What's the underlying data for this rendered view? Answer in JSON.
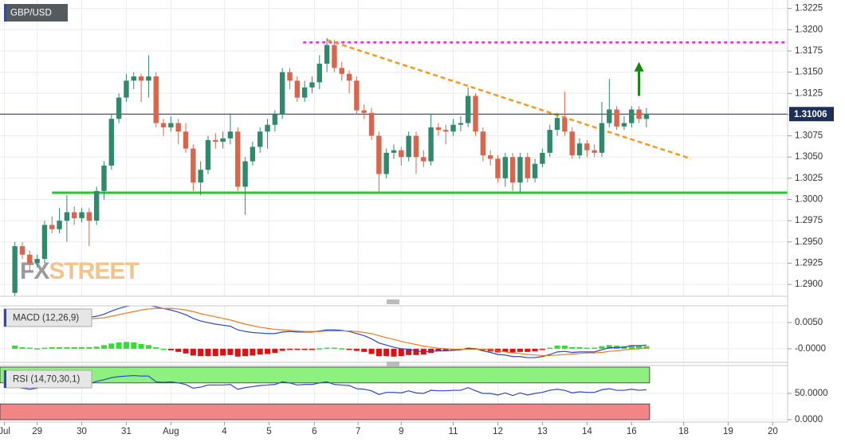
{
  "chart_data": [
    {
      "type": "candlestick",
      "title": "GBP/USD",
      "watermark": {
        "prefix": "FX",
        "suffix": "STREET"
      },
      "x": [
        0,
        1,
        2,
        3,
        4,
        5,
        6,
        7,
        8,
        9,
        10,
        11,
        12,
        13,
        14,
        15,
        16,
        17,
        18,
        19,
        20,
        21,
        22,
        23,
        24,
        25,
        26,
        27,
        28,
        29,
        30,
        31,
        32,
        33,
        34,
        35,
        36,
        37,
        38,
        39,
        40,
        41,
        42,
        43,
        44,
        45,
        46,
        47,
        48,
        49,
        50,
        51,
        52,
        53,
        54,
        55,
        56,
        57,
        58,
        59,
        60,
        61,
        62,
        63,
        64,
        65,
        66,
        67,
        68,
        69,
        70,
        71,
        72,
        73,
        74,
        75,
        76,
        77,
        78,
        79,
        80,
        81,
        82,
        83,
        84,
        85
      ],
      "open": [
        1.289,
        1.2945,
        1.2935,
        1.2925,
        1.293,
        1.297,
        1.2965,
        1.2975,
        1.2985,
        1.2978,
        1.2985,
        1.2975,
        1.301,
        1.304,
        1.3095,
        1.312,
        1.314,
        1.3145,
        1.314,
        1.3145,
        1.309,
        1.3085,
        1.309,
        1.308,
        1.306,
        1.302,
        1.3035,
        1.307,
        1.3068,
        1.3072,
        1.308,
        1.3015,
        1.3045,
        1.3062,
        1.308,
        1.3088,
        1.31,
        1.315,
        1.314,
        1.312,
        1.3132,
        1.3138,
        1.316,
        1.3182,
        1.3155,
        1.3148,
        1.314,
        1.3105,
        1.3102,
        1.3075,
        1.303,
        1.3055,
        1.3058,
        1.305,
        1.3075,
        1.305,
        1.3045,
        1.3085,
        1.3082,
        1.308,
        1.3088,
        1.309,
        1.3122,
        1.308,
        1.3052,
        1.3048,
        1.3025,
        1.305,
        1.302,
        1.305,
        1.3025,
        1.3042,
        1.3055,
        1.3082,
        1.3096,
        1.308,
        1.3052,
        1.3066,
        1.3058,
        1.3055,
        1.309,
        1.3106,
        1.3086,
        1.309,
        1.3106,
        1.3095
      ],
      "high": [
        1.295,
        1.295,
        1.294,
        1.2935,
        1.2975,
        1.298,
        1.299,
        1.3005,
        1.2992,
        1.299,
        1.299,
        1.3015,
        1.3045,
        1.31,
        1.3125,
        1.3148,
        1.315,
        1.3148,
        1.317,
        1.315,
        1.3095,
        1.3098,
        1.3095,
        1.309,
        1.3065,
        1.3045,
        1.3075,
        1.3078,
        1.308,
        1.31,
        1.3085,
        1.305,
        1.3068,
        1.3085,
        1.3095,
        1.3105,
        1.3155,
        1.3155,
        1.3145,
        1.314,
        1.3145,
        1.317,
        1.319,
        1.3188,
        1.3162,
        1.3152,
        1.3145,
        1.3112,
        1.3108,
        1.308,
        1.306,
        1.3065,
        1.3062,
        1.308,
        1.308,
        1.3058,
        1.31,
        1.309,
        1.3088,
        1.3095,
        1.3098,
        1.3132,
        1.3125,
        1.3085,
        1.3058,
        1.3052,
        1.3055,
        1.3055,
        1.3055,
        1.3055,
        1.3048,
        1.306,
        1.3088,
        1.3102,
        1.3127,
        1.3085,
        1.3072,
        1.307,
        1.3065,
        1.3115,
        1.3142,
        1.311,
        1.3098,
        1.311,
        1.311,
        1.3108
      ],
      "low": [
        1.2885,
        1.293,
        1.2915,
        1.292,
        1.2925,
        1.296,
        1.296,
        1.295,
        1.297,
        1.2973,
        1.2945,
        1.297,
        1.3,
        1.3035,
        1.309,
        1.3115,
        1.313,
        1.3115,
        1.312,
        1.3085,
        1.3075,
        1.308,
        1.3065,
        1.3055,
        1.301,
        1.3005,
        1.303,
        1.306,
        1.306,
        1.3065,
        1.301,
        1.2982,
        1.304,
        1.3055,
        1.306,
        1.308,
        1.3095,
        1.313,
        1.3115,
        1.3115,
        1.3125,
        1.313,
        1.315,
        1.315,
        1.314,
        1.3125,
        1.31,
        1.3095,
        1.307,
        1.3008,
        1.3025,
        1.3048,
        1.304,
        1.3045,
        1.303,
        1.3038,
        1.304,
        1.3075,
        1.3065,
        1.3075,
        1.308,
        1.3085,
        1.3075,
        1.3045,
        1.304,
        1.302,
        1.3015,
        1.301,
        1.3008,
        1.302,
        1.302,
        1.3038,
        1.305,
        1.3075,
        1.3075,
        1.3048,
        1.3048,
        1.305,
        1.305,
        1.305,
        1.3085,
        1.3082,
        1.3082,
        1.3085,
        1.309,
        1.3085
      ],
      "close": [
        1.2945,
        1.2935,
        1.2925,
        1.293,
        1.297,
        1.2965,
        1.2975,
        1.2985,
        1.2978,
        1.2985,
        1.2975,
        1.301,
        1.304,
        1.3095,
        1.312,
        1.314,
        1.3145,
        1.314,
        1.3145,
        1.309,
        1.3085,
        1.309,
        1.308,
        1.306,
        1.302,
        1.3035,
        1.307,
        1.3068,
        1.3072,
        1.308,
        1.3015,
        1.3045,
        1.3062,
        1.308,
        1.3088,
        1.31,
        1.315,
        1.314,
        1.312,
        1.3132,
        1.3138,
        1.316,
        1.3182,
        1.3155,
        1.3148,
        1.314,
        1.3105,
        1.3102,
        1.3075,
        1.303,
        1.3055,
        1.3058,
        1.305,
        1.3075,
        1.305,
        1.3045,
        1.3085,
        1.3082,
        1.308,
        1.3088,
        1.309,
        1.3122,
        1.308,
        1.3052,
        1.3048,
        1.3025,
        1.305,
        1.302,
        1.305,
        1.3025,
        1.3042,
        1.3055,
        1.3082,
        1.3096,
        1.308,
        1.3052,
        1.3066,
        1.3058,
        1.3055,
        1.309,
        1.3106,
        1.3086,
        1.309,
        1.3106,
        1.3095,
        1.3101
      ],
      "up_color": "#2f8a6c",
      "down_color": "#d9654c",
      "xlim": [
        -2,
        104
      ],
      "xticks": [
        {
          "value": -1.4,
          "label": "Jul"
        },
        {
          "value": 3,
          "label": "29"
        },
        {
          "value": 9,
          "label": "30"
        },
        {
          "value": 15,
          "label": "31"
        },
        {
          "value": 21,
          "label": "Aug"
        },
        {
          "value": 28.2,
          "label": "4"
        },
        {
          "value": 34.2,
          "label": "5"
        },
        {
          "value": 40.3,
          "label": "6"
        },
        {
          "value": 46.2,
          "label": "7"
        },
        {
          "value": 52,
          "label": "9"
        },
        {
          "value": 59,
          "label": "11"
        },
        {
          "value": 65,
          "label": "12"
        },
        {
          "value": 71,
          "label": "13"
        },
        {
          "value": 77,
          "label": "14"
        },
        {
          "value": 83,
          "label": "16"
        },
        {
          "value": 90,
          "label": "18"
        },
        {
          "value": 96,
          "label": "19"
        },
        {
          "value": 102,
          "label": "20"
        }
      ],
      "ylim": [
        1.2886,
        1.3235
      ],
      "yticks": [
        {
          "value": 1.29,
          "label": "1.2900"
        },
        {
          "value": 1.2925,
          "label": "1.2925"
        },
        {
          "value": 1.295,
          "label": "1.2950"
        },
        {
          "value": 1.2975,
          "label": "1.2975"
        },
        {
          "value": 1.3,
          "label": "1.3000"
        },
        {
          "value": 1.3025,
          "label": "1.3025"
        },
        {
          "value": 1.305,
          "label": "1.3050"
        },
        {
          "value": 1.3075,
          "label": "1.3075"
        },
        {
          "value": 1.31,
          "label": "1.3100"
        },
        {
          "value": 1.3125,
          "label": "1.3125"
        },
        {
          "value": 1.315,
          "label": "1.3150"
        },
        {
          "value": 1.3175,
          "label": "1.3175"
        },
        {
          "value": 1.32,
          "label": "1.3200"
        },
        {
          "value": 1.3225,
          "label": "1.3225"
        }
      ],
      "grid": true,
      "last_price": 1.31006,
      "last_price_color": "#1e2f57",
      "support": {
        "value": 1.3008,
        "start": 5,
        "color": "#22cc22"
      },
      "resistance": {
        "value": 1.3185,
        "start": 38.8,
        "color": "#ee22ee"
      },
      "trendline": {
        "from": [
          42,
          1.3188
        ],
        "to": [
          91,
          1.3048
        ],
        "color": "#f59a1b"
      },
      "arrow": {
        "x": 84,
        "from": 1.3122,
        "to": 1.3162,
        "color": "#118811"
      }
    },
    {
      "type": "macd",
      "title": "MACD (12,26,9)",
      "ylim": [
        -0.0026,
        0.0082
      ],
      "yticks": [
        {
          "value": 0.005,
          "label": "0.0050"
        },
        {
          "value": 0,
          "label": "-0.0000"
        }
      ],
      "series": [
        {
          "color": "#2b47c9",
          "values": [
            0.0058,
            0.0056,
            0.0055,
            0.0054,
            0.0056,
            0.0057,
            0.0058,
            0.0059,
            0.0059,
            0.006,
            0.006,
            0.0062,
            0.0066,
            0.0072,
            0.0077,
            0.0081,
            0.0083,
            0.0083,
            0.0083,
            0.008,
            0.0077,
            0.0074,
            0.007,
            0.0065,
            0.0058,
            0.0053,
            0.005,
            0.0047,
            0.0045,
            0.0043,
            0.0036,
            0.0033,
            0.0031,
            0.003,
            0.0029,
            0.0029,
            0.0032,
            0.0033,
            0.0032,
            0.0032,
            0.0032,
            0.0034,
            0.0036,
            0.0036,
            0.0035,
            0.0033,
            0.0029,
            0.0025,
            0.0019,
            0.0011,
            0.0007,
            0.0003,
            0.0,
            -0.0001,
            -0.0004,
            -0.0006,
            -0.0005,
            -0.0004,
            -0.0004,
            -0.0003,
            -0.0002,
            0.0001,
            0.0,
            -0.0004,
            -0.0007,
            -0.0011,
            -0.0012,
            -0.0015,
            -0.0015,
            -0.0017,
            -0.0017,
            -0.0015,
            -0.0011,
            -0.0006,
            -0.0005,
            -0.0007,
            -0.0006,
            -0.0006,
            -0.0006,
            -0.0002,
            0.0002,
            0.0002,
            0.0003,
            0.0006,
            0.0006,
            0.0007
          ]
        },
        {
          "color": "#f07a1c",
          "values": [
            0.0052,
            0.0053,
            0.0053,
            0.0053,
            0.0054,
            0.0054,
            0.0055,
            0.0056,
            0.0056,
            0.0057,
            0.0057,
            0.0058,
            0.0059,
            0.0062,
            0.0065,
            0.0068,
            0.0071,
            0.0074,
            0.0076,
            0.0077,
            0.0077,
            0.0077,
            0.0076,
            0.0074,
            0.0071,
            0.0067,
            0.0064,
            0.0061,
            0.0058,
            0.0055,
            0.0051,
            0.0047,
            0.0044,
            0.0041,
            0.0039,
            0.0037,
            0.0036,
            0.0035,
            0.0034,
            0.0033,
            0.0033,
            0.0033,
            0.0034,
            0.0034,
            0.0034,
            0.0034,
            0.0033,
            0.0031,
            0.0029,
            0.0025,
            0.0021,
            0.0018,
            0.0014,
            0.0011,
            0.0008,
            0.0005,
            0.0003,
            0.0001,
            0.0,
            -0.0001,
            -0.0001,
            -0.0001,
            -0.0001,
            -0.0001,
            -0.0002,
            -0.0004,
            -0.0006,
            -0.0008,
            -0.0009,
            -0.0011,
            -0.0012,
            -0.0013,
            -0.0013,
            -0.0012,
            -0.0011,
            -0.001,
            -0.0009,
            -0.0008,
            -0.0008,
            -0.0007,
            -0.0005,
            -0.0004,
            -0.0002,
            -0.0001,
            0.0,
            0.0002
          ]
        }
      ],
      "histogram": [
        0.0006,
        0.0003,
        0.0002,
        0.0001,
        0.0002,
        0.0003,
        0.0003,
        0.0003,
        0.0003,
        0.0003,
        0.0003,
        0.0004,
        0.0007,
        0.001,
        0.0012,
        0.0013,
        0.0012,
        0.0009,
        0.0007,
        0.0003,
        0.0,
        -0.0003,
        -0.0006,
        -0.0009,
        -0.0013,
        -0.0014,
        -0.0014,
        -0.0014,
        -0.0013,
        -0.0012,
        -0.0015,
        -0.0014,
        -0.0013,
        -0.0011,
        -0.001,
        -0.0008,
        -0.0004,
        -0.0002,
        -0.0002,
        -0.0001,
        -0.0001,
        0.0001,
        0.0002,
        0.0002,
        0.0001,
        -0.0001,
        -0.0004,
        -0.0006,
        -0.001,
        -0.0014,
        -0.0014,
        -0.0015,
        -0.0014,
        -0.0012,
        -0.0012,
        -0.0011,
        -0.0008,
        -0.0005,
        -0.0004,
        -0.0002,
        -0.0001,
        0.0002,
        0.0001,
        -0.0003,
        -0.0005,
        -0.0007,
        -0.0006,
        -0.0007,
        -0.0006,
        -0.0006,
        -0.0005,
        -0.0002,
        0.0002,
        0.0006,
        0.0006,
        0.0003,
        0.0003,
        0.0002,
        0.0002,
        0.0005,
        0.0007,
        0.0006,
        0.0005,
        0.0007,
        0.0006,
        0.0005
      ],
      "histogram_up_color": "#33dd33",
      "histogram_down_color": "#dd1111"
    },
    {
      "type": "rsi",
      "title": "RSI (14,70,30,1)",
      "ylim": [
        -4.5,
        103
      ],
      "yticks": [
        {
          "value": 50,
          "label": "50.0000"
        },
        {
          "value": 0,
          "label": "0.0000"
        }
      ],
      "bands": [
        {
          "from": 70,
          "to": 100,
          "color": "#8ef07f"
        },
        {
          "from": 0,
          "to": 30,
          "color": "#f28585"
        }
      ],
      "series": [
        {
          "color": "#2b47c9",
          "values": [
            62,
            60,
            58,
            60,
            66,
            65,
            68,
            70,
            69,
            70,
            68,
            73,
            76,
            80,
            82,
            83,
            84,
            83,
            83,
            72,
            71,
            72,
            70,
            67,
            60,
            62,
            66,
            66,
            66,
            67,
            58,
            61,
            63,
            65,
            66,
            67,
            72,
            70,
            66,
            67,
            67,
            70,
            72,
            67,
            66,
            65,
            59,
            58,
            55,
            48,
            52,
            52,
            51,
            55,
            51,
            50,
            56,
            55,
            55,
            56,
            56,
            61,
            55,
            50,
            50,
            47,
            51,
            46,
            51,
            47,
            50,
            52,
            56,
            58,
            56,
            51,
            53,
            52,
            52,
            57,
            59,
            56,
            56,
            58,
            56,
            57
          ]
        }
      ]
    }
  ]
}
